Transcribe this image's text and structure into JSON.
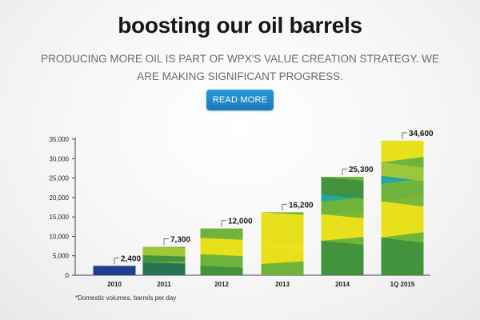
{
  "header": {
    "title": "boosting our oil barrels",
    "subtitle": "PRODUCING MORE OIL IS PART OF WPX'S VALUE CREATION STRATEGY. WE ARE MAKING SIGNIFICANT PROGRESS.",
    "cta_label": "READ MORE"
  },
  "colors": {
    "cta": "#1f87c8",
    "bar_2010": "#1f3f8f",
    "bar_greens": [
      "#3f8f3d",
      "#6fb43b",
      "#a3c93a",
      "#1f6f57"
    ],
    "bar_yellow": "#f2e418",
    "bar_teal": "#1aa6a6"
  },
  "chart_data": {
    "type": "bar",
    "categories": [
      "2010",
      "2011",
      "2012",
      "2013",
      "2014",
      "1Q 2015"
    ],
    "values": [
      2400,
      7300,
      12000,
      16200,
      25300,
      34600
    ],
    "value_labels": [
      "2,400",
      "7,300",
      "12,000",
      "16,200",
      "25,300",
      "34,600"
    ],
    "ylim": [
      0,
      35000
    ],
    "y_ticks": [
      "0",
      "5,000",
      "10,000",
      "15,000",
      "20,000",
      "25,000",
      "30,000",
      "35,000"
    ],
    "grid": false,
    "footnote": "*Domestic volumes, barrels per day"
  }
}
